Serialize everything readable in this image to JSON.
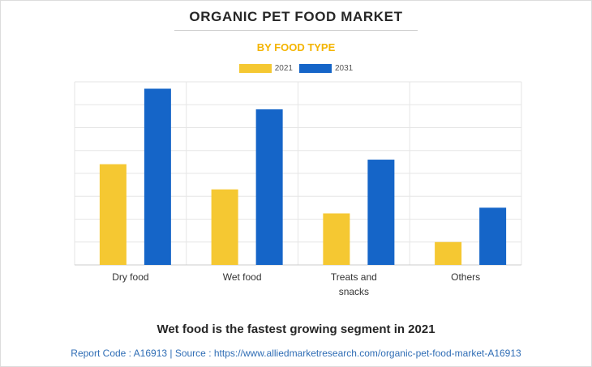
{
  "title": "ORGANIC PET FOOD MARKET",
  "subtitle": "BY FOOD TYPE",
  "insight": "Wet food is the fastest growing segment in 2021",
  "footer": "Report Code : A16913  |  Source : https://www.alliedmarketresearch.com/organic-pet-food-market-A16913",
  "colors": {
    "series_2021": "#f5c832",
    "series_2031": "#1565c8",
    "subtitle": "#f4b400"
  },
  "chart_data": {
    "type": "bar",
    "categories": [
      [
        "Dry food"
      ],
      [
        "Wet food"
      ],
      [
        "Treats and",
        "snacks"
      ],
      [
        "Others"
      ]
    ],
    "series": [
      {
        "name": "2021",
        "color": "#f5c832",
        "values": [
          4.4,
          3.3,
          2.25,
          1.0
        ]
      },
      {
        "name": "2031",
        "color": "#1565c8",
        "values": [
          7.7,
          6.8,
          4.6,
          2.5
        ]
      }
    ],
    "ylim": [
      0,
      8
    ],
    "grid": true,
    "legend": "top-center",
    "xlabel": "",
    "ylabel": ""
  }
}
